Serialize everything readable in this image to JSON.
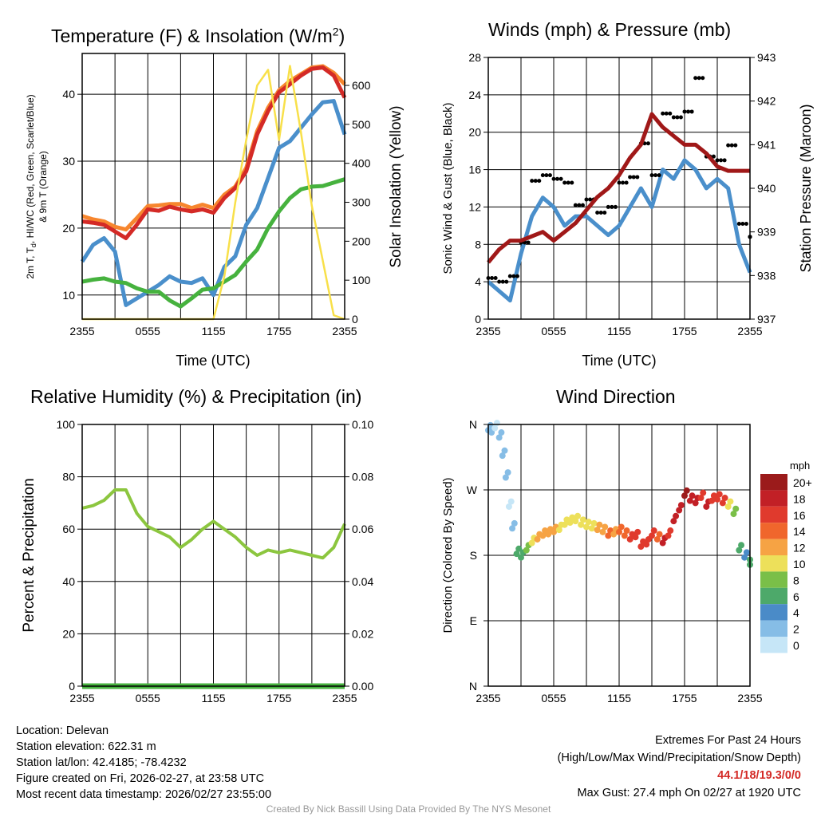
{
  "colors": {
    "red": "#d42a26",
    "orange": "#f7862e",
    "green": "#46b23e",
    "blue": "#4a8fcb",
    "yellow": "#f8e04a",
    "black": "#000000",
    "maroon": "#a01818",
    "rh": "#8cc63f",
    "precip": "#46b23e",
    "extremes": "#d42a26",
    "credit": "#999999"
  },
  "chart_data": [
    {
      "type": "line",
      "title": "Temperature (F) & Insolation (W/m²)",
      "xlabel": "Time (UTC)",
      "ylabel": "2m T, Td, HI/WC (Red, Green, Scarlet/Blue) & 9m T (Orange)",
      "ylabel_line1": "2m T, T",
      "ylabel_sub": "d",
      "ylabel_line1b": ", HI/WC (Red, Green, Scarlet/Blue)",
      "ylabel_line2": "& 9m T (Orange)",
      "y2label": "Solar Insolation (Yellow)",
      "ylim": [
        6.4,
        46.1
      ],
      "y2lim": [
        0,
        682
      ],
      "yticks": [
        10,
        20,
        30,
        40
      ],
      "y2ticks": [
        0,
        100,
        200,
        300,
        400,
        500,
        600
      ],
      "x_hours": [
        0,
        1,
        2,
        3,
        4,
        5,
        6,
        7,
        8,
        9,
        10,
        11,
        12,
        13,
        14,
        15,
        16,
        17,
        18,
        19,
        20,
        21,
        22,
        23,
        24
      ],
      "xtick_labels": [
        "2355",
        "0555",
        "1155",
        "1755",
        "2355"
      ],
      "series": [
        {
          "name": "9m T",
          "color": "orange",
          "axis": "left",
          "values": [
            21.8,
            21.3,
            21,
            20.2,
            19.8,
            21.5,
            23.3,
            23.4,
            23.6,
            23.6,
            23,
            23.5,
            23,
            25,
            26.2,
            29,
            34.5,
            38,
            40.6,
            42,
            43,
            44,
            44.2,
            43.2,
            41.5
          ]
        },
        {
          "name": "2m T",
          "color": "red",
          "axis": "left",
          "values": [
            21,
            20.8,
            20.5,
            19.5,
            18.5,
            20.5,
            22.8,
            22.6,
            23.2,
            22.8,
            22.5,
            22.8,
            22.3,
            24.5,
            26,
            28.5,
            34,
            37.5,
            40.3,
            41.5,
            42.8,
            43.8,
            44,
            42.8,
            39.5
          ]
        },
        {
          "name": "HI/WC",
          "color": "blue",
          "axis": "left",
          "values": [
            15,
            17.5,
            18.5,
            16.5,
            8.5,
            9.5,
            10.5,
            11.5,
            12.8,
            12,
            11.8,
            12.5,
            10,
            14.2,
            15.8,
            20.5,
            23,
            27.5,
            32,
            33,
            35,
            37,
            38.8,
            39,
            34
          ]
        },
        {
          "name": "Td",
          "color": "green",
          "axis": "left",
          "values": [
            12,
            12.3,
            12.5,
            12,
            11.8,
            11,
            10.5,
            10.5,
            9.2,
            8.3,
            9.5,
            10.8,
            11,
            12,
            13,
            15,
            16.8,
            20,
            22.5,
            24.5,
            25.8,
            26.2,
            26.3,
            26.8,
            27.3
          ]
        },
        {
          "name": "Solar Insolation",
          "color": "yellow",
          "axis": "right",
          "values": [
            0,
            0,
            0,
            0,
            0,
            0,
            0,
            0,
            0,
            0,
            0,
            0,
            0,
            110,
            300,
            460,
            600,
            640,
            460,
            650,
            480,
            290,
            150,
            10,
            0
          ]
        }
      ]
    },
    {
      "type": "line",
      "title": "Winds (mph) & Pressure (mb)",
      "xlabel": "Time (UTC)",
      "ylabel": "Sonic Wind & Gust (Blue, Black)",
      "y2label": "Station Pressure (Maroon)",
      "ylim": [
        0,
        28
      ],
      "y2lim": [
        937,
        943
      ],
      "yticks": [
        0,
        4,
        8,
        12,
        16,
        20,
        24,
        28
      ],
      "y2ticks": [
        937,
        938,
        939,
        940,
        941,
        942,
        943
      ],
      "x_hours": [
        0,
        1,
        2,
        3,
        4,
        5,
        6,
        7,
        8,
        9,
        10,
        11,
        12,
        13,
        14,
        15,
        16,
        17,
        18,
        19,
        20,
        21,
        22,
        23,
        24
      ],
      "xtick_labels": [
        "2355",
        "0555",
        "1155",
        "1755",
        "2355"
      ],
      "series": [
        {
          "name": "Sonic Wind",
          "color": "blue",
          "axis": "left",
          "values": [
            4,
            3,
            2,
            7,
            11,
            13,
            12,
            10,
            11,
            11,
            10,
            9,
            10,
            12,
            14,
            12,
            16,
            15,
            17,
            16,
            14,
            15,
            14,
            8,
            5
          ]
        },
        {
          "name": "Gust",
          "color": "black",
          "axis": "left",
          "style": "dots",
          "values": [
            6,
            4,
            3,
            9,
            14,
            17,
            15,
            13,
            13,
            12,
            13,
            12,
            13,
            16,
            18,
            17,
            22,
            20,
            23,
            25,
            19,
            17,
            17,
            11,
            8
          ]
        },
        {
          "name": "Station Pressure",
          "color": "maroon",
          "axis": "right",
          "values": [
            938.3,
            938.6,
            938.8,
            938.8,
            938.9,
            939,
            938.8,
            939,
            939.2,
            939.5,
            939.8,
            940,
            940.3,
            940.7,
            941,
            941.7,
            941.4,
            941.2,
            941,
            941,
            940.8,
            940.5,
            940.4,
            940.4,
            940.4
          ]
        }
      ]
    },
    {
      "type": "line",
      "title": "Relative Humidity (%) & Precipitation (in)",
      "ylabel": "Percent & Precipitation",
      "ylim": [
        0,
        100
      ],
      "y2lim": [
        0,
        0.1
      ],
      "yticks": [
        0,
        20,
        40,
        60,
        80,
        100
      ],
      "y2ticks": [
        "0.00",
        "0.02",
        "0.04",
        "0.06",
        "0.08",
        "0.10"
      ],
      "x_hours": [
        0,
        1,
        2,
        3,
        4,
        5,
        6,
        7,
        8,
        9,
        10,
        11,
        12,
        13,
        14,
        15,
        16,
        17,
        18,
        19,
        20,
        21,
        22,
        23,
        24
      ],
      "xtick_labels": [
        "2355",
        "0555",
        "1155",
        "1755",
        "2355"
      ],
      "series": [
        {
          "name": "Relative Humidity",
          "color": "rh",
          "axis": "left",
          "values": [
            68,
            69,
            71,
            75,
            75,
            66,
            61,
            59,
            57,
            53,
            56,
            60,
            63,
            60,
            57,
            53,
            50,
            52,
            51,
            52,
            51,
            50,
            49,
            53,
            62
          ]
        },
        {
          "name": "Precipitation",
          "color": "precip",
          "axis": "right",
          "values": [
            0,
            0,
            0,
            0,
            0,
            0,
            0,
            0,
            0,
            0,
            0,
            0,
            0,
            0,
            0,
            0,
            0,
            0,
            0,
            0,
            0,
            0,
            0,
            0,
            0
          ]
        }
      ]
    },
    {
      "type": "scatter",
      "title": "Wind Direction",
      "ylabel": "Direction (Colored By Speed)",
      "ylim": [
        0,
        360
      ],
      "ytick_labels": [
        "N",
        "E",
        "S",
        "W",
        "N"
      ],
      "xtick_labels": [
        "2355",
        "0555",
        "1155",
        "1755",
        "2355"
      ],
      "x_hours": [
        0,
        0.3,
        0.6,
        1,
        1.3,
        1.6,
        1.9,
        2.2,
        2.6,
        3,
        3.5,
        4,
        4.5,
        5,
        5.5,
        6,
        6.5,
        7,
        7.5,
        8,
        8.5,
        9,
        9.5,
        10,
        10.5,
        11,
        11.5,
        12,
        12.5,
        13,
        13.5,
        14,
        14.5,
        15,
        15.5,
        16,
        16.5,
        17,
        17.5,
        18,
        18.5,
        19,
        19.5,
        20,
        20.5,
        21,
        21.5,
        22,
        22.5,
        23,
        23.5,
        24
      ],
      "directions": [
        355,
        352,
        358,
        345,
        320,
        290,
        250,
        220,
        185,
        180,
        190,
        200,
        205,
        210,
        212,
        215,
        218,
        225,
        228,
        230,
        225,
        222,
        220,
        218,
        215,
        210,
        212,
        215,
        210,
        205,
        208,
        195,
        198,
        210,
        205,
        200,
        210,
        230,
        245,
        265,
        258,
        255,
        262,
        250,
        258,
        260,
        255,
        250,
        240,
        190,
        180,
        170
      ],
      "speeds": [
        3,
        2,
        1,
        3,
        2,
        2,
        1,
        3,
        6,
        6,
        8,
        10,
        12,
        12,
        12,
        12,
        10,
        10,
        10,
        10,
        10,
        10,
        10,
        12,
        12,
        14,
        12,
        14,
        14,
        16,
        16,
        16,
        16,
        16,
        14,
        18,
        16,
        18,
        18,
        20,
        18,
        18,
        16,
        18,
        16,
        16,
        16,
        10,
        8,
        6,
        4,
        6
      ],
      "colorbar": {
        "label": "mph",
        "tick_labels": [
          "20+",
          "18",
          "16",
          "14",
          "12",
          "10",
          "8",
          "6",
          "4",
          "2",
          "0"
        ],
        "bin_colors": [
          "#9b1b1b",
          "#c22026",
          "#e03a2d",
          "#f0662c",
          "#f6a344",
          "#ede05a",
          "#7abf48",
          "#4da96a",
          "#4a8bc8",
          "#86bde6",
          "#c6e6f7"
        ]
      }
    }
  ],
  "footer": {
    "location": "Location: Delevan",
    "elevation": "Station elevation: 622.31 m",
    "latlon": "Station lat/lon: 42.4185; -78.4232",
    "created": "Figure created on Fri, 2026-02-27, at 23:58 UTC",
    "recent": "Most recent data timestamp: 2026/02/27 23:55:00",
    "extremes_title": "Extremes For Past 24 Hours",
    "extremes_legend": "(High/Low/Max Wind/Precipitation/Snow Depth)",
    "extremes_values": "44.1/18/19.3/0/0",
    "max_gust": "Max Gust: 27.4 mph On 02/27 at 1920 UTC",
    "credit": "Created By Nick Bassill Using Data Provided By The NYS Mesonet"
  }
}
